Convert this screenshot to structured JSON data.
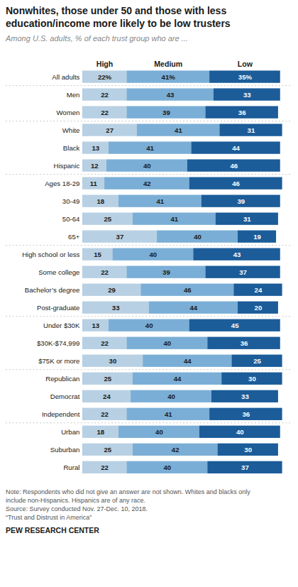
{
  "chart_data": {
    "type": "bar",
    "orientation": "horizontal",
    "stacked": true,
    "data_labels": true,
    "grid": false,
    "tick_labels": "y",
    "title": "Nonwhites, those under 50 and those with less\neducation/income more likely to be low trusters",
    "subtitle": "Among U.S. adults, % of each trust group who are ...",
    "categories": [
      "All adults",
      "Men",
      "Women",
      "White",
      "Black",
      "Hispanic",
      "Ages 18-29",
      "30-49",
      "50-64",
      "65+",
      "High school or less",
      "Some college",
      "Bachelor’s degree",
      "Post-graduate",
      "Under $30K",
      "$30K-$74,999",
      "$75K or more",
      "Republican",
      "Democrat",
      "Independent",
      "Urban",
      "Suburban",
      "Rural"
    ],
    "groups": [
      [
        "All adults"
      ],
      [
        "Men",
        "Women"
      ],
      [
        "White",
        "Black",
        "Hispanic"
      ],
      [
        "Ages 18-29",
        "30-49",
        "50-64",
        "65+"
      ],
      [
        "High school or less",
        "Some college",
        "Bachelor’s degree",
        "Post-graduate"
      ],
      [
        "Under $30K",
        "$30K-$74,999",
        "$75K or more"
      ],
      [
        "Republican",
        "Democrat",
        "Independent"
      ],
      [
        "Urban",
        "Suburban",
        "Rural"
      ]
    ],
    "xlim": [
      0,
      100
    ],
    "series": [
      {
        "name": "High",
        "color": "#b8d0e3",
        "values": [
          22,
          22,
          22,
          27,
          13,
          12,
          11,
          18,
          25,
          37,
          15,
          22,
          29,
          33,
          13,
          22,
          30,
          25,
          24,
          22,
          18,
          25,
          22
        ],
        "value_labels": [
          "22%",
          "22",
          "22",
          "27",
          "13",
          "12",
          "11",
          "18",
          "25",
          "37",
          "15",
          "22",
          "29",
          "33",
          "13",
          "22",
          "30",
          "25",
          "24",
          "22",
          "18",
          "25",
          "22"
        ]
      },
      {
        "name": "Medium",
        "color": "#7aaed6",
        "values": [
          41,
          43,
          39,
          41,
          41,
          40,
          42,
          41,
          41,
          40,
          40,
          39,
          46,
          44,
          40,
          40,
          44,
          44,
          40,
          41,
          40,
          42,
          40
        ],
        "value_labels": [
          "41%",
          "43",
          "39",
          "41",
          "41",
          "40",
          "42",
          "41",
          "41",
          "40",
          "40",
          "39",
          "46",
          "44",
          "40",
          "40",
          "44",
          "44",
          "40",
          "41",
          "40",
          "42",
          "40"
        ]
      },
      {
        "name": "Low",
        "color": "#1b5c99",
        "values": [
          35,
          33,
          36,
          31,
          44,
          46,
          46,
          39,
          31,
          19,
          43,
          37,
          24,
          20,
          45,
          36,
          25,
          30,
          33,
          36,
          40,
          30,
          37
        ],
        "value_labels": [
          "35%",
          "33",
          "36",
          "31",
          "44",
          "46",
          "46",
          "39",
          "31",
          "19",
          "43",
          "37",
          "24",
          "20",
          "45",
          "36",
          "25",
          "30",
          "33",
          "36",
          "40",
          "30",
          "37"
        ]
      }
    ],
    "notes": [
      "Note: Respondents who did not give an answer are not shown. Whites and blacks only",
      "include non-Hispanics. Hispanics are of any race.",
      "Source: Survey conducted Nov. 27-Dec. 10, 2018.",
      "“Trust and Distrust in America”"
    ],
    "source": "PEW RESEARCH CENTER"
  }
}
